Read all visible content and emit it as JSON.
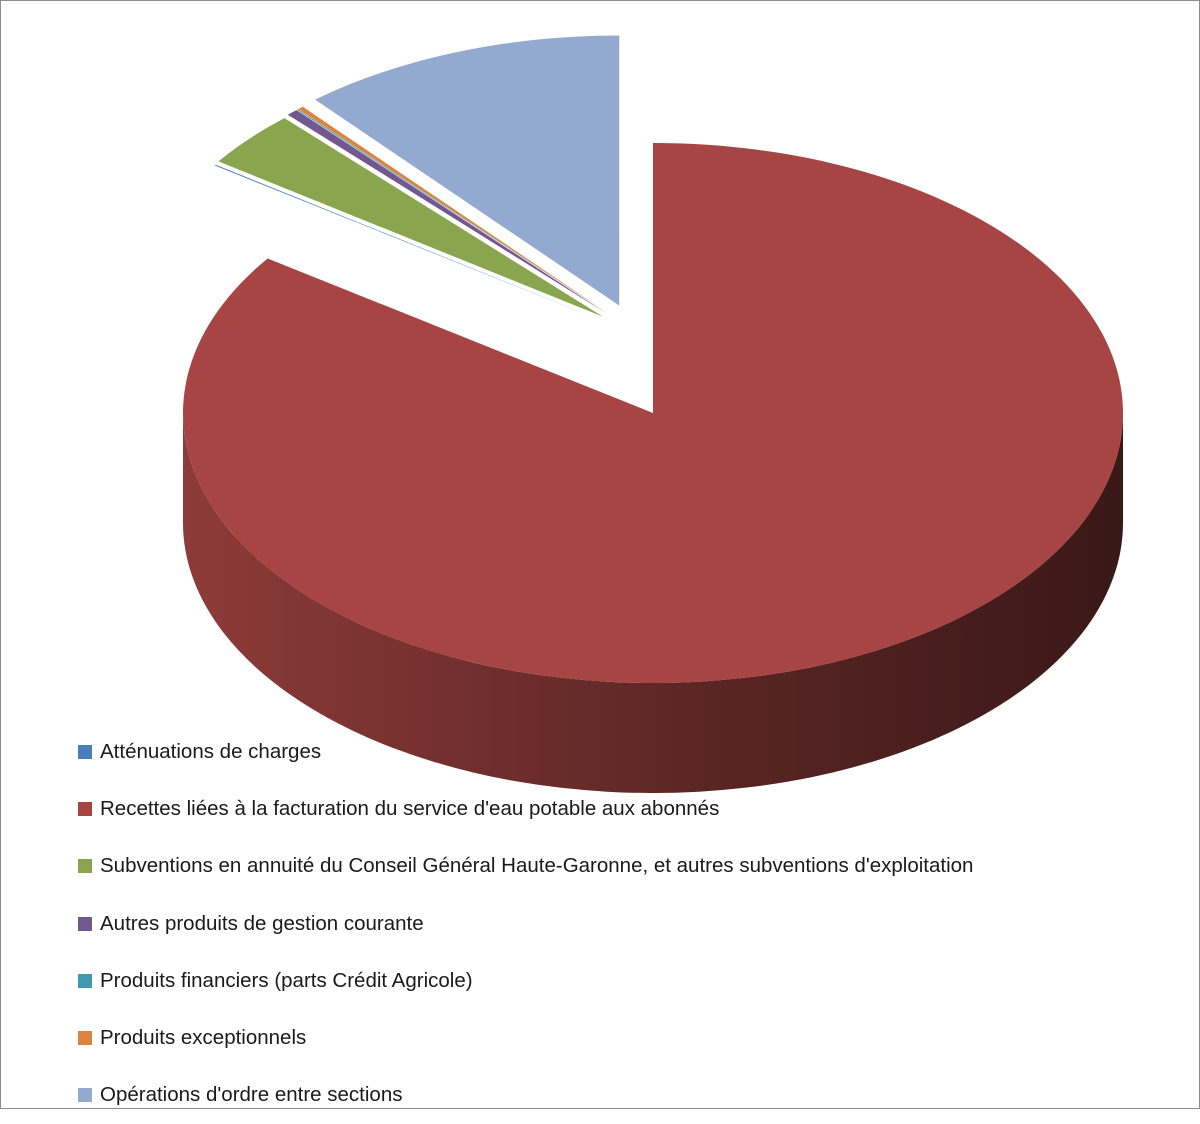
{
  "chart_data": {
    "type": "pie",
    "style": "3d-exploded",
    "legend_position": "bottom-left",
    "title": "",
    "series": [
      {
        "label": "Atténuations de charges",
        "value": 0.05,
        "color": "#4a7ebb"
      },
      {
        "label": "Recettes liées à la facturation du service d'eau potable aux abonnés",
        "value": 84.7,
        "color": "#a64543"
      },
      {
        "label": "Subventions en annuité du Conseil Général Haute-Garonne, et autres subventions d'exploitation",
        "value": 3.4,
        "color": "#89a54e"
      },
      {
        "label": "Autres produits de gestion courante",
        "value": 0.4,
        "color": "#71588f"
      },
      {
        "label": "Produits financiers (parts Crédit Agricole)",
        "value": 0.05,
        "color": "#4198af"
      },
      {
        "label": "Produits exceptionnels",
        "value": 0.2,
        "color": "#db843d"
      },
      {
        "label": "Opérations d'ordre entre sections",
        "value": 11.2,
        "color": "#93a9d0"
      }
    ]
  }
}
